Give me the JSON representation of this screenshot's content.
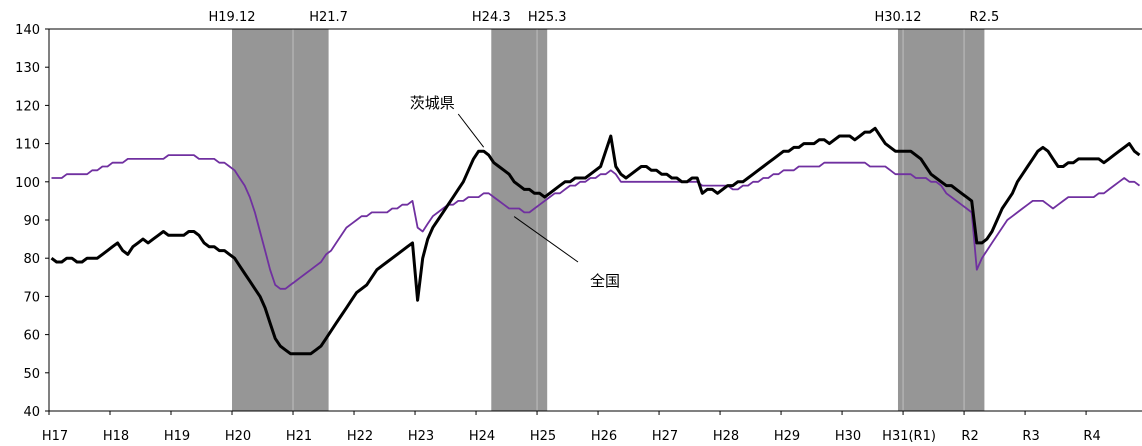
{
  "chart_data": {
    "type": "line",
    "title": "",
    "xlabel": "",
    "ylabel": "",
    "ylim": [
      40,
      140
    ],
    "yticks": [
      40,
      50,
      60,
      70,
      80,
      90,
      100,
      110,
      120,
      130,
      140
    ],
    "grid": false,
    "x_tick_labels": [
      "H17",
      "H18",
      "H19",
      "H20",
      "H21",
      "H22",
      "H23",
      "H24",
      "H25",
      "H26",
      "H27",
      "H28",
      "H29",
      "H30",
      "H31(R1)",
      "R2",
      "R3",
      "R4"
    ],
    "recession_periods": [
      {
        "start": 36,
        "end": 55,
        "peak_label": "H19.12",
        "trough_label": "H21.7"
      },
      {
        "start": 87,
        "end": 98,
        "peak_label": "H24.3",
        "trough_label": "H25.3"
      },
      {
        "start": 167,
        "end": 184,
        "peak_label": "H30.12",
        "trough_label": "R2.5"
      }
    ],
    "series": [
      {
        "name": "茨城県",
        "color": "#000000",
        "values": [
          80,
          79,
          79,
          80,
          80,
          79,
          79,
          80,
          80,
          80,
          81,
          82,
          83,
          84,
          82,
          81,
          83,
          84,
          85,
          84,
          85,
          86,
          87,
          86,
          86,
          86,
          86,
          87,
          87,
          86,
          84,
          83,
          83,
          82,
          82,
          81,
          80,
          78,
          76,
          74,
          72,
          70,
          67,
          63,
          59,
          57,
          56,
          55,
          55,
          55,
          55,
          55,
          56,
          57,
          59,
          61,
          63,
          65,
          67,
          69,
          71,
          72,
          73,
          75,
          77,
          78,
          79,
          80,
          81,
          82,
          83,
          84,
          69,
          80,
          85,
          88,
          90,
          92,
          94,
          96,
          98,
          100,
          103,
          106,
          108,
          108,
          107,
          105,
          104,
          103,
          102,
          100,
          99,
          98,
          98,
          97,
          97,
          96,
          97,
          98,
          99,
          100,
          100,
          101,
          101,
          101,
          102,
          103,
          104,
          108,
          112,
          104,
          102,
          101,
          102,
          103,
          104,
          104,
          103,
          103,
          102,
          102,
          101,
          101,
          100,
          100,
          101,
          101,
          97,
          98,
          98,
          97,
          98,
          99,
          99,
          100,
          100,
          101,
          102,
          103,
          104,
          105,
          106,
          107,
          108,
          108,
          109,
          109,
          110,
          110,
          110,
          111,
          111,
          110,
          111,
          112,
          112,
          112,
          111,
          112,
          113,
          113,
          114,
          112,
          110,
          109,
          108,
          108,
          108,
          108,
          107,
          106,
          104,
          102,
          101,
          100,
          99,
          99,
          98,
          97,
          96,
          95,
          84,
          84,
          85,
          87,
          90,
          93,
          95,
          97,
          100,
          102,
          104,
          106,
          108,
          109,
          108,
          106,
          104,
          104,
          105,
          105,
          106,
          106,
          106,
          106,
          106,
          105,
          106,
          107,
          108,
          109,
          110,
          108,
          107
        ]
      },
      {
        "name": "全国",
        "color": "#7030a0",
        "values": [
          101,
          101,
          101,
          102,
          102,
          102,
          102,
          102,
          103,
          103,
          104,
          104,
          105,
          105,
          105,
          106,
          106,
          106,
          106,
          106,
          106,
          106,
          106,
          107,
          107,
          107,
          107,
          107,
          107,
          106,
          106,
          106,
          106,
          105,
          105,
          104,
          103,
          101,
          99,
          96,
          92,
          87,
          82,
          77,
          73,
          72,
          72,
          73,
          74,
          75,
          76,
          77,
          78,
          79,
          81,
          82,
          84,
          86,
          88,
          89,
          90,
          91,
          91,
          92,
          92,
          92,
          92,
          93,
          93,
          94,
          94,
          95,
          88,
          87,
          89,
          91,
          92,
          93,
          94,
          94,
          95,
          95,
          96,
          96,
          96,
          97,
          97,
          96,
          95,
          94,
          93,
          93,
          93,
          92,
          92,
          93,
          94,
          95,
          96,
          97,
          97,
          98,
          99,
          99,
          100,
          100,
          101,
          101,
          102,
          102,
          103,
          102,
          100,
          100,
          100,
          100,
          100,
          100,
          100,
          100,
          100,
          100,
          100,
          100,
          100,
          100,
          100,
          100,
          99,
          99,
          99,
          99,
          99,
          99,
          98,
          98,
          99,
          99,
          100,
          100,
          101,
          101,
          102,
          102,
          103,
          103,
          103,
          104,
          104,
          104,
          104,
          104,
          105,
          105,
          105,
          105,
          105,
          105,
          105,
          105,
          105,
          104,
          104,
          104,
          104,
          103,
          102,
          102,
          102,
          102,
          101,
          101,
          101,
          100,
          100,
          99,
          97,
          96,
          95,
          94,
          93,
          92,
          77,
          80,
          82,
          84,
          86,
          88,
          90,
          91,
          92,
          93,
          94,
          95,
          95,
          95,
          94,
          93,
          94,
          95,
          96,
          96,
          96,
          96,
          96,
          96,
          97,
          97,
          98,
          99,
          100,
          101,
          100,
          100,
          99
        ]
      }
    ],
    "annotations": [
      {
        "text": "茨城県",
        "series": "茨城県"
      },
      {
        "text": "全国",
        "series": "全国"
      }
    ]
  }
}
